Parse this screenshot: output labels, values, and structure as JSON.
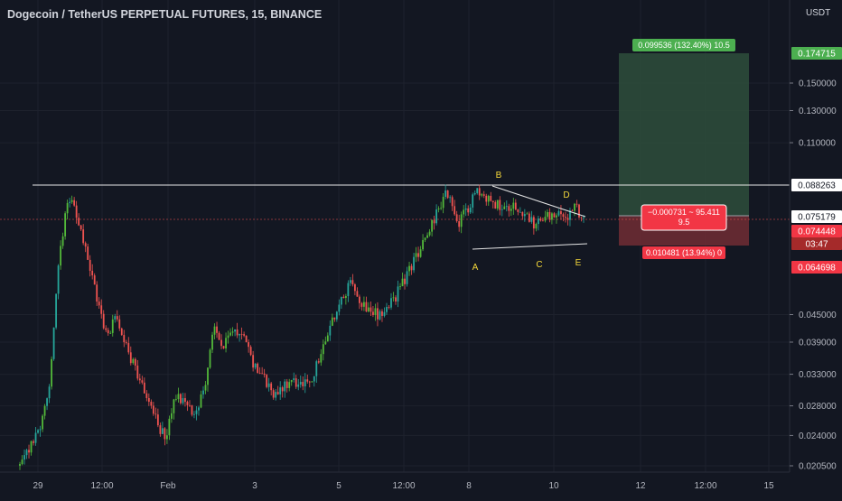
{
  "header": {
    "title": "Dogecoin / TetherUS PERPETUAL FUTURES, 15, BINANCE"
  },
  "colors": {
    "background": "#131722",
    "up_candle": "#26a69a",
    "up_bright": "#53b93a",
    "down_candle": "#ef5350",
    "level_line": "#e6e6e6",
    "current_price": "#ef5350",
    "profit_zone": "#2e4d3b",
    "loss_zone": "#6b2b33",
    "label_yellow": "#f5d83a",
    "green_tag": "#4caf50",
    "red_tag": "#f23645"
  },
  "chart_data": {
    "type": "line",
    "title": "Dogecoin / TetherUS PERPETUAL FUTURES, 15, BINANCE",
    "currency_label": "USDT",
    "y_scale": "log",
    "ylim": [
      0.0205,
      0.215
    ],
    "x_ticks": [
      "29",
      "12:00",
      "Feb",
      "3",
      "5",
      "12:00",
      "8",
      "10",
      "12",
      "12:00",
      "15"
    ],
    "y_ticks": [
      "0.150000",
      "0.130000",
      "0.110000",
      "0.045000",
      "0.039000",
      "0.033000",
      "0.028000",
      "0.024000",
      "0.020500"
    ],
    "series": [
      {
        "values": [
          0.0205,
          0.0225,
          0.0245,
          0.03,
          0.06,
          0.085,
          0.072,
          0.06,
          0.048,
          0.04,
          0.045,
          0.038,
          0.033,
          0.03,
          0.026,
          0.0235,
          0.03,
          0.028,
          0.027,
          0.031,
          0.042,
          0.038,
          0.042,
          0.04,
          0.035,
          0.033,
          0.03,
          0.031,
          0.032,
          0.031,
          0.032,
          0.037,
          0.043,
          0.048,
          0.053,
          0.048,
          0.046,
          0.045,
          0.047,
          0.051,
          0.056,
          0.062,
          0.068,
          0.078,
          0.085,
          0.072,
          0.078,
          0.086,
          0.082,
          0.08,
          0.079,
          0.08,
          0.076,
          0.072,
          0.074,
          0.076,
          0.074,
          0.079,
          0.075
        ]
      }
    ],
    "horizontal_levels": [
      {
        "price": 0.088263,
        "label": "0.088263"
      }
    ],
    "triangle_pattern": {
      "labels": [
        "A",
        "B",
        "C",
        "D",
        "E"
      ]
    },
    "price_tags": [
      {
        "label": "0.174715",
        "style": "green"
      },
      {
        "label": "0.088263",
        "style": "white"
      },
      {
        "label": "0.075179",
        "style": "white"
      },
      {
        "label": "0.074448",
        "style": "red"
      },
      {
        "label": "03:47",
        "style": "red-dark"
      },
      {
        "label": "0.064698",
        "style": "red"
      }
    ],
    "position_tool": {
      "target_label": "0.099536 (132.40%) 10.5",
      "center_label_line1": "−0.000731 ~ 95.411",
      "center_label_line2": "9.5",
      "stop_label": "0.010481 (13.94%) 0"
    }
  }
}
